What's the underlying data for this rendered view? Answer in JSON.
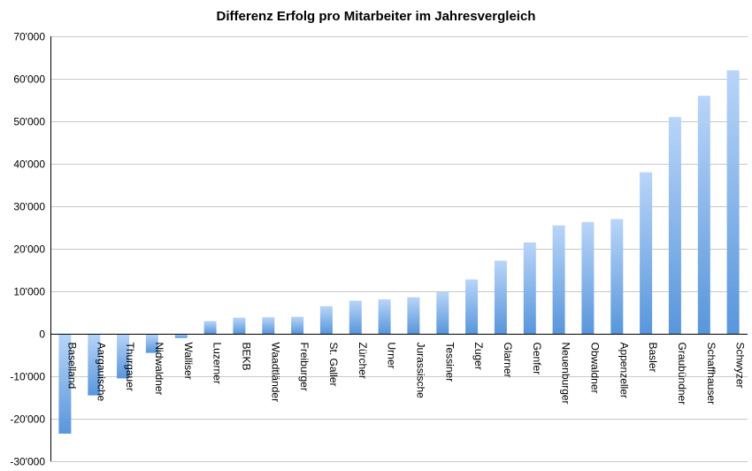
{
  "chart_data": {
    "type": "bar",
    "title": "Differenz Erfolg pro Mitarbeiter im Jahresvergleich",
    "xlabel": "",
    "ylabel": "",
    "ylim": [
      -30000,
      70000
    ],
    "yticks": [
      70000,
      60000,
      50000,
      40000,
      30000,
      20000,
      10000,
      0,
      -10000,
      -20000,
      -30000
    ],
    "ytick_labels": [
      "70'000",
      "60'000",
      "50'000",
      "40'000",
      "30'000",
      "20'000",
      "10'000",
      "0",
      "-10'000",
      "-20'000",
      "-30'000"
    ],
    "grid": true,
    "legend": "none",
    "categories": [
      "Baselland",
      "Aargauische",
      "Thurgauer",
      "Nidwaldner",
      "Walliser",
      "Luzerner",
      "BEKB",
      "Waadtländer",
      "Freiburger",
      "St. Galler",
      "Zürcher",
      "Urner",
      "Jurassische",
      "Tessiner",
      "Zuger",
      "Glarner",
      "Genfer",
      "Neuenburger",
      "Obwaldner",
      "Appenzeller",
      "Basler",
      "Graubündner",
      "Schaffhauser",
      "Schwyzer"
    ],
    "values": [
      -23500,
      -14500,
      -10500,
      -4500,
      -1000,
      3000,
      3800,
      3900,
      4000,
      6500,
      7800,
      8100,
      8600,
      9800,
      12800,
      17200,
      21500,
      25500,
      26300,
      27000,
      38000,
      51000,
      56000,
      62000
    ],
    "colors": {
      "bar_light": "#b8d4f7",
      "bar_dark": "#5b97dc",
      "grid": "#c8c8c8"
    }
  }
}
